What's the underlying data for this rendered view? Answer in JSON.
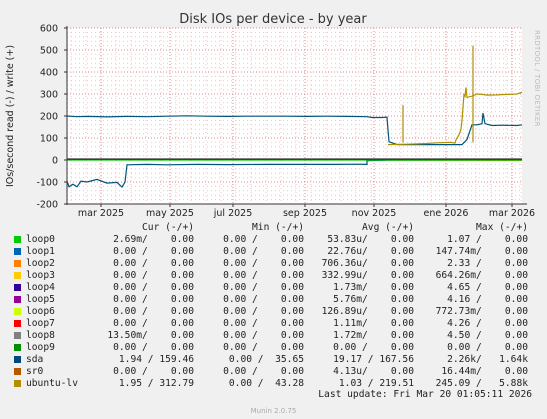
{
  "chart_data": {
    "type": "line",
    "title": "Disk IOs per device - by year",
    "ylabel": "IOs/second read (-) / write (+)",
    "ylim": [
      -200,
      600
    ],
    "yticks": [
      600,
      500,
      400,
      300,
      200,
      100,
      0,
      -100,
      -200
    ],
    "grid": true,
    "x_tick_labels": [
      "mar 2025",
      "may 2025",
      "jul 2025",
      "sep 2025",
      "nov 2025",
      "ene 2026",
      "mar 2026"
    ],
    "series": [
      {
        "name": "sda",
        "color": "#00547b",
        "write_points": [
          [
            0,
            200
          ],
          [
            10,
            197
          ],
          [
            20,
            198
          ],
          [
            40,
            196
          ],
          [
            60,
            198
          ],
          [
            80,
            197
          ],
          [
            100,
            199
          ],
          [
            120,
            201
          ],
          [
            140,
            199
          ],
          [
            160,
            198
          ],
          [
            180,
            199
          ],
          [
            200,
            199
          ],
          [
            220,
            199
          ],
          [
            240,
            198
          ],
          [
            260,
            199
          ],
          [
            280,
            198
          ],
          [
            300,
            197
          ],
          [
            305,
            193
          ],
          [
            315,
            193
          ],
          [
            320,
            195
          ],
          [
            321,
            136
          ],
          [
            322,
            83
          ],
          [
            330,
            70
          ],
          [
            350,
            70
          ],
          [
            370,
            70
          ],
          [
            395,
            70
          ],
          [
            400,
            93
          ],
          [
            405,
            160
          ],
          [
            410,
            160
          ],
          [
            415,
            165
          ],
          [
            416,
            213
          ],
          [
            418,
            165
          ],
          [
            425,
            157
          ],
          [
            435,
            158
          ],
          [
            450,
            157
          ],
          [
            455,
            160
          ]
        ],
        "read_points": [
          [
            0,
            -95
          ],
          [
            2,
            -122
          ],
          [
            6,
            -110
          ],
          [
            10,
            -122
          ],
          [
            14,
            -96
          ],
          [
            20,
            -100
          ],
          [
            30,
            -88
          ],
          [
            40,
            -105
          ],
          [
            50,
            -102
          ],
          [
            55,
            -123
          ],
          [
            58,
            -100
          ],
          [
            60,
            -22
          ],
          [
            80,
            -20
          ],
          [
            100,
            -22
          ],
          [
            130,
            -20
          ],
          [
            160,
            -21
          ],
          [
            200,
            -20
          ],
          [
            240,
            -20
          ],
          [
            270,
            -20
          ],
          [
            290,
            -19
          ],
          [
            300,
            -20
          ],
          [
            300,
            -3
          ],
          [
            320,
            -1
          ],
          [
            455,
            0
          ]
        ]
      },
      {
        "name": "ubuntu-lv",
        "color": "#b09000",
        "write_points": [
          [
            321,
            70
          ],
          [
            330,
            71
          ],
          [
            340,
            72
          ],
          [
            350,
            73
          ],
          [
            360,
            75
          ],
          [
            370,
            78
          ],
          [
            384,
            80
          ],
          [
            388,
            77
          ],
          [
            389,
            92
          ],
          [
            392,
            115
          ],
          [
            394,
            140
          ],
          [
            395,
            180
          ],
          [
            396,
            240
          ],
          [
            397,
            300
          ],
          [
            398,
            290
          ],
          [
            399,
            330
          ],
          [
            400,
            285
          ],
          [
            405,
            290
          ],
          [
            410,
            300
          ],
          [
            415,
            298
          ],
          [
            420,
            295
          ],
          [
            430,
            296
          ],
          [
            440,
            298
          ],
          [
            450,
            300
          ],
          [
            455,
            308
          ]
        ],
        "read_points": [
          [
            321,
            0
          ],
          [
            455,
            -2
          ]
        ]
      },
      {
        "name": "loop0",
        "color": "#00cc00",
        "write_points": [
          [
            0,
            0
          ],
          [
            455,
            0
          ]
        ],
        "read_points": []
      }
    ],
    "spikes": [
      {
        "series": "ubuntu-lv",
        "x": 336,
        "y": 250
      },
      {
        "series": "ubuntu-lv",
        "x": 406,
        "y": 520
      }
    ]
  },
  "legend": {
    "header": {
      "cur": "Cur (-/+)",
      "min": "Min (-/+)",
      "avg": "Avg (-/+)",
      "max": "Max (-/+)"
    },
    "rows": [
      {
        "name": "loop0",
        "color": "#00cc00",
        "cur": "2.69m/    0.00",
        "min": "0.00 /    0.00",
        "avg": "53.83u/    0.00",
        "max": "1.07 /    0.00"
      },
      {
        "name": "loop1",
        "color": "#0066b3",
        "cur": "0.00 /    0.00",
        "min": "0.00 /    0.00",
        "avg": "22.76u/    0.00",
        "max": "147.74m/    0.00"
      },
      {
        "name": "loop2",
        "color": "#ff8000",
        "cur": "0.00 /    0.00",
        "min": "0.00 /    0.00",
        "avg": "706.36u/    0.00",
        "max": "2.33 /    0.00"
      },
      {
        "name": "loop3",
        "color": "#ffcc00",
        "cur": "0.00 /    0.00",
        "min": "0.00 /    0.00",
        "avg": "332.99u/    0.00",
        "max": "664.26m/    0.00"
      },
      {
        "name": "loop4",
        "color": "#330099",
        "cur": "0.00 /    0.00",
        "min": "0.00 /    0.00",
        "avg": "1.73m/    0.00",
        "max": "4.65 /    0.00"
      },
      {
        "name": "loop5",
        "color": "#990099",
        "cur": "0.00 /    0.00",
        "min": "0.00 /    0.00",
        "avg": "5.76m/    0.00",
        "max": "4.16 /    0.00"
      },
      {
        "name": "loop6",
        "color": "#ccff00",
        "cur": "0.00 /    0.00",
        "min": "0.00 /    0.00",
        "avg": "126.89u/    0.00",
        "max": "772.73m/    0.00"
      },
      {
        "name": "loop7",
        "color": "#ff0000",
        "cur": "0.00 /    0.00",
        "min": "0.00 /    0.00",
        "avg": "1.11m/    0.00",
        "max": "4.26 /    0.00"
      },
      {
        "name": "loop8",
        "color": "#808080",
        "cur": "13.50m/    0.00",
        "min": "0.00 /    0.00",
        "avg": "1.72m/    0.00",
        "max": "4.50 /    0.00"
      },
      {
        "name": "loop9",
        "color": "#008f00",
        "cur": "0.00 /    0.00",
        "min": "0.00 /    0.00",
        "avg": "0.00 /    0.00",
        "max": "0.00 /    0.00"
      },
      {
        "name": "sda",
        "color": "#00487d",
        "cur": "1.94 / 159.46",
        "min": "0.00 /  35.65",
        "avg": "19.17 / 167.56",
        "max": "2.26k/   1.64k"
      },
      {
        "name": "sr0",
        "color": "#b35a00",
        "cur": "0.00 /    0.00",
        "min": "0.00 /    0.00",
        "avg": "4.13u/    0.00",
        "max": "16.44m/    0.00"
      },
      {
        "name": "ubuntu-lv",
        "color": "#b38f00",
        "cur": "1.95 / 312.79",
        "min": "0.00 /  43.28",
        "avg": "1.03 / 219.51",
        "max": "245.09 /   5.88k"
      }
    ]
  },
  "footer": {
    "last_update": "Last update: Fri Mar 20 01:05:11 2026",
    "generator": "Munin 2.0.75"
  },
  "watermark": "RRDTOOL / TOBI OETIKER"
}
